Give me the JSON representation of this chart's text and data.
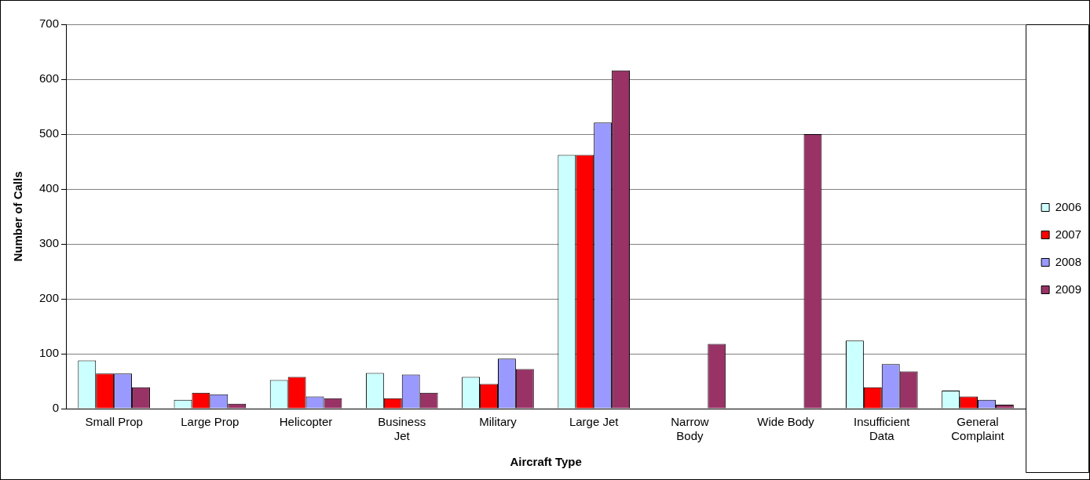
{
  "chart_data": {
    "type": "bar",
    "xlabel": "Aircraft Type",
    "ylabel": "Number of Calls",
    "categories": [
      "Small Prop",
      "Large Prop",
      "Helicopter",
      "Business Jet",
      "Military",
      "Large Jet",
      "Narrow Body",
      "Wide Body",
      "Insufficient Data",
      "General Complaint"
    ],
    "series": [
      {
        "name": "2006",
        "color": "#ccffff",
        "values": [
          88,
          16,
          52,
          65,
          58,
          462,
          null,
          null,
          124,
          33
        ]
      },
      {
        "name": "2007",
        "color": "#ff0000",
        "values": [
          64,
          29,
          58,
          19,
          45,
          462,
          null,
          null,
          39,
          22
        ]
      },
      {
        "name": "2008",
        "color": "#9999ff",
        "values": [
          64,
          26,
          22,
          62,
          91,
          521,
          null,
          null,
          81,
          16
        ]
      },
      {
        "name": "2009",
        "color": "#993366",
        "values": [
          39,
          9,
          19,
          29,
          72,
          616,
          118,
          500,
          68,
          7
        ]
      }
    ],
    "ylim": [
      0,
      700
    ],
    "yticks": [
      0,
      100,
      200,
      300,
      400,
      500,
      600,
      700
    ],
    "grid": "y",
    "legend": "right"
  }
}
